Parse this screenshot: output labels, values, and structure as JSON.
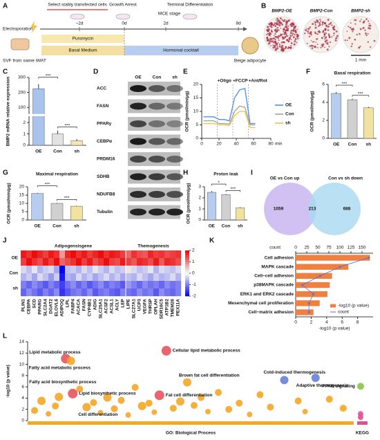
{
  "panels": {
    "A": {
      "letter": "A",
      "stages": [
        "Select stably transfected cells",
        "Growth Arrest",
        "MCE stage",
        "Terminal Differentiation"
      ],
      "electroporation": "Electroporation",
      "timepoints": [
        "~2d",
        "0d",
        "2d",
        "8d"
      ],
      "source": "SVF from swine iWAT",
      "selection": "Puromycin",
      "media": [
        "Basal Medium",
        "Hormonal cocktail"
      ],
      "product": "Beige adipocyte"
    },
    "B": {
      "letter": "B",
      "images": [
        "BMP2-OE",
        "BMP2-Con",
        "BMP2-sh"
      ],
      "scale": "1 mm"
    },
    "D": {
      "letter": "D",
      "columns": [
        "OE",
        "Con",
        "sh"
      ],
      "proteins": [
        "ACC",
        "FASN",
        "PPARγ",
        "CEBPα",
        "PRDM16",
        "SDHB",
        "NDUFB8",
        "Tubulin"
      ]
    },
    "I": {
      "letter": "I",
      "sets": [
        "OE vs Con up",
        "Con vs sh down"
      ],
      "counts": {
        "left": 1059,
        "both": 213,
        "right": 688
      }
    }
  },
  "chart_data": [
    {
      "type": "bar",
      "panel": "C",
      "ylabel": "BMP2 mRNA relative expression",
      "categories": [
        "OE",
        "Con",
        "sh"
      ],
      "values": [
        225,
        1.0,
        0.4
      ],
      "errors": [
        30,
        0.3,
        0.15
      ],
      "colors": [
        "#a9c4ec",
        "#e2e2e2",
        "#f5e6b0"
      ],
      "ylim": [
        0,
        300
      ],
      "ybreak": [
        2.5,
        60
      ],
      "yticks": [
        0,
        1,
        2,
        100,
        200,
        300
      ],
      "annotations": [
        {
          "text": "***",
          "between": [
            "OE",
            "Con"
          ]
        },
        {
          "text": "***",
          "between": [
            "Con",
            "sh"
          ]
        }
      ]
    },
    {
      "type": "line",
      "panel": "E",
      "ylabel": "OCR (pmol/min/μg)",
      "xlabel": "min",
      "x": [
        2,
        8,
        14,
        20,
        26,
        32,
        38,
        44,
        50,
        56,
        62
      ],
      "series": [
        {
          "name": "OE",
          "color": "#4a90e2",
          "values": [
            8,
            8,
            8,
            7,
            7,
            6.5,
            15,
            18,
            18.5,
            5.5,
            5.5
          ]
        },
        {
          "name": "Con",
          "color": "#a0a0a0",
          "values": [
            6.5,
            6.5,
            6.5,
            5.5,
            5.5,
            5.3,
            10,
            12,
            11.5,
            5,
            5
          ]
        },
        {
          "name": "sh",
          "color": "#f0c040",
          "values": [
            5.5,
            5.5,
            5.5,
            5,
            5,
            4.8,
            8.5,
            10,
            10,
            4,
            4
          ]
        }
      ],
      "xlim": [
        0,
        80
      ],
      "xticks": [
        0,
        20,
        40,
        60,
        80
      ],
      "ylim": [
        0,
        20
      ],
      "yticks": [
        0,
        5,
        10,
        15,
        20
      ],
      "annotations": [
        {
          "text": "+Oligo",
          "x": 18
        },
        {
          "text": "+FCCP",
          "x": 36
        },
        {
          "text": "+Ant/Rot",
          "x": 54
        }
      ]
    },
    {
      "type": "bar",
      "panel": "F",
      "title": "Basal respiration",
      "ylabel": "OCR (pmol/min/μg)",
      "categories": [
        "OE",
        "Con",
        "sh"
      ],
      "values": [
        5.0,
        4.3,
        3.4
      ],
      "errors": [
        0.15,
        0.1,
        0.1
      ],
      "colors": [
        "#b7cdf0",
        "#d0d0d0",
        "#f2e2a0"
      ],
      "ylim": [
        0,
        6
      ],
      "yticks": [
        0,
        2,
        4,
        6
      ],
      "annotations": [
        {
          "text": "***",
          "between": [
            "OE",
            "Con"
          ]
        },
        {
          "text": "***",
          "between": [
            "Con",
            "sh"
          ]
        }
      ]
    },
    {
      "type": "bar",
      "panel": "G",
      "title": "Maximal respiration",
      "ylabel": "OCR (pmol/min/μg)",
      "categories": [
        "OE",
        "Con",
        "sh"
      ],
      "values": [
        16,
        10,
        8.3
      ],
      "errors": [
        0.4,
        0.3,
        0.3
      ],
      "colors": [
        "#b7cdf0",
        "#d0d0d0",
        "#f2e2a0"
      ],
      "ylim": [
        0,
        20
      ],
      "yticks": [
        0,
        5,
        10,
        15,
        20
      ],
      "annotations": [
        {
          "text": "***",
          "between": [
            "OE",
            "Con"
          ]
        },
        {
          "text": "***",
          "between": [
            "Con",
            "sh"
          ]
        }
      ]
    },
    {
      "type": "bar",
      "panel": "H",
      "title": "Proton leak",
      "ylabel": "OCR (pmol/min/μg)",
      "categories": [
        "OE",
        "Con",
        "sh"
      ],
      "values": [
        2.5,
        2.3,
        1.1
      ],
      "errors": [
        0.12,
        0.05,
        0.06
      ],
      "colors": [
        "#b7cdf0",
        "#d0d0d0",
        "#f2e2a0"
      ],
      "ylim": [
        0,
        3
      ],
      "yticks": [
        0,
        1,
        2,
        3
      ],
      "annotations": [
        {
          "text": "*",
          "between": [
            "OE",
            "Con"
          ]
        },
        {
          "text": "***",
          "between": [
            "Con",
            "sh"
          ]
        }
      ]
    },
    {
      "type": "heatmap",
      "panel": "J",
      "column_groups": [
        {
          "label": "Adipogensisgene",
          "count": 19
        },
        {
          "label": "Themogenesis",
          "count": 10
        }
      ],
      "columns": [
        "PLIN1",
        "CEBPA",
        "SCD",
        "PPARG",
        "SLC2A4",
        "DGAT2",
        "ELOVL6",
        "ADIPOQ",
        "LPL",
        "FABP4",
        "ACACA",
        "FASN",
        "CYP4B1",
        "ADIG",
        "SLC25A1",
        "ACSF2",
        "ACSL1",
        "ACLY",
        "LEP",
        "LIPE",
        "SLC27A1",
        "UCP3",
        "VEGFA",
        "THRSP",
        "OPLAH",
        "SDR16C5",
        "ATP1B2",
        "TMEM26",
        "PEX11A"
      ],
      "row_groups": [
        "OE",
        "Con",
        "sh"
      ],
      "values": [
        [
          1.8,
          1.6,
          1.9,
          1.7,
          1.5,
          1.8,
          1.6,
          0.8,
          1.7,
          1.9,
          1.6,
          1.8,
          1.5,
          1.7,
          1.9,
          1.6,
          1.8,
          1.7,
          1.5,
          1.2,
          1.6,
          1.4,
          1.3,
          1.7,
          1.5,
          1.6,
          1.4,
          1.5,
          1.6
        ],
        [
          1.5,
          1.9,
          1.6,
          1.4,
          1.8,
          1.5,
          1.9,
          1.2,
          1.4,
          1.6,
          1.9,
          1.5,
          1.8,
          1.4,
          1.6,
          1.9,
          1.5,
          1.4,
          1.8,
          1.5,
          1.3,
          1.7,
          1.6,
          1.4,
          1.8,
          1.3,
          1.7,
          1.6,
          1.4
        ],
        [
          -0.3,
          -0.5,
          -0.2,
          -0.6,
          -0.4,
          -0.3,
          -0.7,
          -2.0,
          -0.5,
          -0.4,
          -0.6,
          -0.3,
          -0.5,
          -0.2,
          -0.4,
          -0.6,
          -0.3,
          -0.5,
          -0.4,
          0.2,
          -0.3,
          -0.5,
          -0.4,
          -0.2,
          -0.6,
          -0.3,
          -0.4,
          -0.5,
          -0.3
        ],
        [
          -0.6,
          -0.4,
          -0.7,
          -0.3,
          -0.5,
          -0.8,
          -0.4,
          -1.8,
          -0.6,
          -0.7,
          -0.3,
          -0.6,
          -0.4,
          -0.7,
          -0.5,
          -0.3,
          -0.6,
          -0.4,
          -0.7,
          -0.5,
          -0.6,
          -0.3,
          -0.5,
          -0.7,
          -0.4,
          -0.6,
          -0.5,
          -0.3,
          -0.6
        ],
        [
          -1.0,
          -1.2,
          -0.9,
          -1.1,
          -1.3,
          -1.0,
          -1.2,
          -1.5,
          -1.1,
          -0.9,
          -1.2,
          -1.0,
          -1.3,
          -1.1,
          -0.9,
          -1.2,
          -1.0,
          -1.1,
          -1.3,
          -0.8,
          -1.0,
          -1.2,
          -0.9,
          -1.1,
          -1.0,
          -1.2,
          -0.9,
          -1.1,
          -1.0
        ],
        [
          -1.2,
          -0.9,
          -1.1,
          -1.3,
          -1.0,
          -1.2,
          -0.9,
          -1.6,
          -1.3,
          -1.1,
          -1.0,
          -1.2,
          -0.9,
          -1.3,
          -1.1,
          -1.0,
          -1.2,
          -1.3,
          -1.0,
          -1.1,
          -1.2,
          -0.9,
          -1.1,
          -1.0,
          -1.3,
          -0.9,
          -1.1,
          -1.2,
          -1.0
        ]
      ],
      "zlim": [
        -2,
        2
      ],
      "zticks": [
        2,
        1,
        0,
        -1,
        -2
      ]
    },
    {
      "type": "barh",
      "panel": "K",
      "categories": [
        "Cell adhesion",
        "MAPK cascade",
        "Cell−cell adhesion",
        "p38MAPK cascade",
        "ERK1 and ERK2 cascade",
        "Mesenchymal cell proliferation",
        "Cell−matrix adhesion"
      ],
      "series": [
        {
          "name": "-log10 (p value)",
          "color": "#f08040",
          "values": [
            9.6,
            6.8,
            4.7,
            4.4,
            4.1,
            3.1,
            2.3
          ]
        },
        {
          "name": "count",
          "color": "#4a6fe3",
          "values": [
            165,
            100,
            55,
            15,
            40,
            30,
            30
          ],
          "axis": "x2"
        }
      ],
      "xlabel": "-log10 (p value)",
      "x2label": "count",
      "xlim": [
        0,
        10
      ],
      "xticks": [
        0,
        2,
        4,
        6,
        8
      ],
      "x2lim": [
        0,
        175
      ],
      "x2ticks": [
        0,
        25,
        50,
        75,
        100,
        125,
        150
      ],
      "legend": "lower right"
    },
    {
      "type": "scatter",
      "panel": "L",
      "ylabel": "-log10 (p value)",
      "xlim": [
        0,
        100
      ],
      "ylim": [
        0,
        14
      ],
      "yticks": [
        0,
        2,
        4,
        6,
        8,
        10,
        12,
        14
      ],
      "xbands": [
        {
          "label": "GO: Biological Process",
          "range": [
            0,
            94
          ],
          "color": "#f5a623"
        },
        {
          "label": "KEGG",
          "range": [
            95,
            98
          ],
          "color": "#e05090"
        }
      ],
      "points": [
        {
          "x": 2,
          "y": 1.8,
          "size": 5,
          "color": "#f5a623"
        },
        {
          "x": 4,
          "y": 3.5,
          "size": 6,
          "color": "#f5a623"
        },
        {
          "x": 6,
          "y": 1.2,
          "size": 4,
          "color": "#f5a623"
        },
        {
          "x": 8,
          "y": 2.6,
          "size": 5,
          "color": "#f5a623"
        },
        {
          "x": 9,
          "y": 4.2,
          "size": 6,
          "color": "#f5a623"
        },
        {
          "x": 11,
          "y": 11,
          "size": 7,
          "color": "#e8555f"
        },
        {
          "x": 12.5,
          "y": 10.6,
          "size": 6,
          "color": "#f5a623"
        },
        {
          "x": 13,
          "y": 4.8,
          "size": 7,
          "color": "#e8555f"
        },
        {
          "x": 15,
          "y": 5.6,
          "size": 5,
          "color": "#f5a623"
        },
        {
          "x": 17,
          "y": 2.4,
          "size": 6,
          "color": "#f5a623"
        },
        {
          "x": 19,
          "y": 3.2,
          "size": 5,
          "color": "#f5a623"
        },
        {
          "x": 21,
          "y": 1.4,
          "size": 4,
          "color": "#f5a623"
        },
        {
          "x": 23,
          "y": 4.1,
          "size": 6,
          "color": "#f5a623"
        },
        {
          "x": 25,
          "y": 2.1,
          "size": 5,
          "color": "#f5a623"
        },
        {
          "x": 27,
          "y": 3.6,
          "size": 5,
          "color": "#f5a623"
        },
        {
          "x": 29,
          "y": 1.0,
          "size": 4,
          "color": "#f5a623"
        },
        {
          "x": 31,
          "y": 5.9,
          "size": 5,
          "color": "#f5a623"
        },
        {
          "x": 33,
          "y": 2.6,
          "size": 6,
          "color": "#f5a623"
        },
        {
          "x": 35,
          "y": 3.1,
          "size": 5,
          "color": "#f5a623"
        },
        {
          "x": 36.5,
          "y": 1.5,
          "size": 4,
          "color": "#f5a623"
        },
        {
          "x": 38,
          "y": 4.5,
          "size": 7,
          "color": "#e8555f"
        },
        {
          "x": 40,
          "y": 12.4,
          "size": 7,
          "color": "#e8555f"
        },
        {
          "x": 42,
          "y": 2.2,
          "size": 5,
          "color": "#f5a623"
        },
        {
          "x": 44,
          "y": 3.4,
          "size": 6,
          "color": "#f5a623"
        },
        {
          "x": 46,
          "y": 6.8,
          "size": 6,
          "color": "#f5a623"
        },
        {
          "x": 48,
          "y": 2.7,
          "size": 5,
          "color": "#f5a623"
        },
        {
          "x": 50,
          "y": 4.1,
          "size": 5,
          "color": "#f5a623"
        },
        {
          "x": 52,
          "y": 1.6,
          "size": 4,
          "color": "#f5a623"
        },
        {
          "x": 55,
          "y": 5.0,
          "size": 5,
          "color": "#f5a623"
        },
        {
          "x": 58,
          "y": 2.0,
          "size": 5,
          "color": "#f5a623"
        },
        {
          "x": 61,
          "y": 3.1,
          "size": 5,
          "color": "#f5a623"
        },
        {
          "x": 64,
          "y": 1.1,
          "size": 4,
          "color": "#f5a623"
        },
        {
          "x": 67,
          "y": 4.6,
          "size": 5,
          "color": "#f5a623"
        },
        {
          "x": 70,
          "y": 2.4,
          "size": 5,
          "color": "#f5a623"
        },
        {
          "x": 74,
          "y": 7.2,
          "size": 6,
          "color": "#6a7fd8"
        },
        {
          "x": 78,
          "y": 3.5,
          "size": 5,
          "color": "#f5a623"
        },
        {
          "x": 80,
          "y": 1.6,
          "size": 4,
          "color": "#f5a623"
        },
        {
          "x": 83,
          "y": 7.6,
          "size": 6,
          "color": "#6a7fd8"
        },
        {
          "x": 87,
          "y": 3.8,
          "size": 5,
          "color": "#f5a623"
        },
        {
          "x": 91,
          "y": 2.2,
          "size": 5,
          "color": "#f5a623"
        },
        {
          "x": 96,
          "y": 6.1,
          "size": 5,
          "color": "#8bc34a"
        },
        {
          "x": 96,
          "y": 1.2,
          "size": 4,
          "color": "#e05090"
        },
        {
          "x": 96,
          "y": 0.6,
          "size": 4,
          "color": "#e05090"
        }
      ],
      "annotations": [
        {
          "text": "Lipid metabolic process",
          "point": 5
        },
        {
          "text": "Fatty acid metabolic process",
          "point": 6
        },
        {
          "text": "Cellular lipid metabolic process",
          "point": 21
        },
        {
          "text": "Cold-induced thermogenesis",
          "point": 34
        },
        {
          "text": "Brown fat cell differentiation",
          "point": 24
        },
        {
          "text": "Fat cell differentiation",
          "point": 20
        },
        {
          "text": "Lipid biosynthetic process",
          "point": 7
        },
        {
          "text": "Fatty acid biosynthetic process",
          "point": 8
        },
        {
          "text": "Cell differentiation",
          "point": 9
        },
        {
          "text": "Adaptive thermogenesis",
          "point": 37
        },
        {
          "text": "PPAR signaling",
          "point": 40
        }
      ]
    }
  ]
}
